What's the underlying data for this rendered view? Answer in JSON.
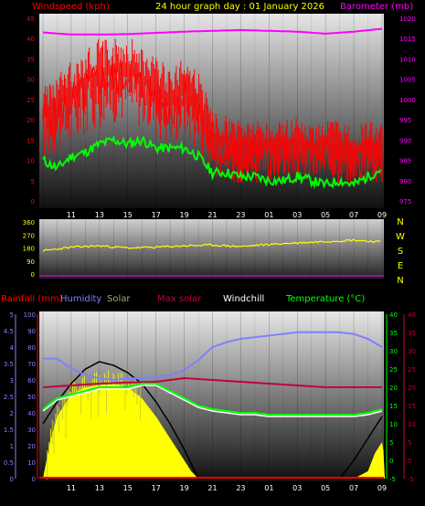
{
  "header": {
    "windspeed_label": "Windspeed (kph)",
    "title": "24 hour graph day : 01 January 2026",
    "barometer_label": "Barometer (mb)"
  },
  "legend2": {
    "rainfall": "Rainfall (mm)",
    "humidity": "Humidity",
    "solar": "Solar",
    "max_solar": "Max solar",
    "windchill": "Windchill",
    "temperature": "Temperature (°C)"
  },
  "colors": {
    "windspeed": "#ff0000",
    "windavg": "#00ff00",
    "barometer": "#ff00ff",
    "direction": "#ffff00",
    "humidity": "#8080ff",
    "solar": "#ffff00",
    "max_solar": "#c00040",
    "windchill": "#ffffff",
    "temperature": "#00ff00",
    "rain": "#ff0000",
    "rain_axis": "#8080ff",
    "title": "#ffff00"
  },
  "chart_data": [
    {
      "type": "line",
      "x_ticks": [
        "11",
        "13",
        "15",
        "17",
        "19",
        "21",
        "23",
        "01",
        "03",
        "05",
        "07",
        "09"
      ],
      "left_axis": {
        "label": "Windspeed (kph)",
        "ylim": [
          0,
          45
        ],
        "ticks": [
          "0",
          "5",
          "10",
          "15",
          "20",
          "25",
          "30",
          "35",
          "40",
          "45"
        ]
      },
      "right_axis": {
        "label": "Barometer (mb)",
        "ylim": [
          975,
          1020
        ],
        "ticks": [
          "975",
          "980",
          "985",
          "990",
          "995",
          "1000",
          "1005",
          "1010",
          "1015",
          "1020"
        ]
      },
      "series": [
        {
          "name": "Windspeed",
          "axis": "left",
          "kind": "gust_band",
          "x_hours": [
            9,
            10,
            11,
            12,
            13,
            14,
            15,
            16,
            17,
            18,
            19,
            20,
            21,
            22,
            23,
            24,
            25,
            26,
            27,
            28,
            29,
            30,
            31,
            32,
            33
          ],
          "values": [
            20,
            21,
            24,
            27,
            30,
            30,
            31,
            28,
            26,
            22,
            27,
            22,
            13,
            12,
            11,
            11,
            10,
            12,
            12,
            11,
            12,
            11,
            9,
            11,
            11
          ],
          "upper": [
            29,
            31,
            35,
            38,
            40,
            40,
            41,
            38,
            36,
            33,
            36,
            32,
            22,
            21,
            20,
            20,
            19,
            20,
            21,
            19,
            20,
            20,
            18,
            20,
            19
          ],
          "lower": [
            10,
            12,
            13,
            16,
            18,
            19,
            20,
            18,
            16,
            13,
            16,
            12,
            6,
            5,
            4,
            4,
            4,
            5,
            5,
            4,
            5,
            4,
            3,
            4,
            4
          ]
        },
        {
          "name": "Average wind",
          "axis": "left",
          "x_hours": [
            9,
            10,
            11,
            12,
            13,
            14,
            15,
            16,
            17,
            18,
            19,
            20,
            21,
            22,
            23,
            24,
            25,
            26,
            27,
            28,
            29,
            30,
            31,
            32,
            33
          ],
          "values": [
            10,
            8,
            11,
            12,
            14,
            15,
            14,
            15,
            13,
            13,
            13,
            11,
            7,
            7,
            6,
            6,
            5,
            5,
            6,
            5,
            4,
            5,
            4,
            6,
            8
          ]
        },
        {
          "name": "Barometer",
          "axis": "right",
          "x_hours": [
            9,
            11,
            13,
            15,
            17,
            19,
            21,
            23,
            25,
            27,
            29,
            31,
            33
          ],
          "values": [
            1016.5,
            1016,
            1016,
            1016.1,
            1016.4,
            1016.7,
            1016.9,
            1017.1,
            1016.9,
            1016.7,
            1016.2,
            1016.7,
            1017.4
          ]
        }
      ]
    },
    {
      "type": "line",
      "y_ticks": [
        "0",
        "90",
        "180",
        "270",
        "360"
      ],
      "ylim": [
        0,
        360
      ],
      "compass_labels": [
        "N",
        "W",
        "S",
        "E",
        "N"
      ],
      "series": [
        {
          "name": "Wind direction",
          "x_hours": [
            9,
            11,
            13,
            15,
            17,
            19,
            21,
            23,
            25,
            27,
            29,
            31,
            33
          ],
          "values": [
            160,
            185,
            195,
            180,
            185,
            195,
            200,
            190,
            205,
            215,
            225,
            235,
            220
          ]
        }
      ]
    },
    {
      "type": "area",
      "left_outer": {
        "label": "Rainfall (mm)",
        "ticks": [
          "0",
          "0.5",
          "1",
          "1.5",
          "2",
          "2.5",
          "3",
          "3.5",
          "4",
          "4.5",
          "5"
        ]
      },
      "left_inner": {
        "label": "Humidity",
        "ylim": [
          0,
          100
        ],
        "ticks": [
          "0",
          "10",
          "20",
          "30",
          "40",
          "50",
          "60",
          "70",
          "80",
          "90",
          "100"
        ]
      },
      "right_inner": {
        "label": "Temperature (°C)",
        "ylim": [
          -5,
          40
        ],
        "ticks": [
          "-5",
          "0",
          "5",
          "10",
          "15",
          "20",
          "25",
          "30",
          "35",
          "40"
        ]
      },
      "right_outer": {
        "ticks": [
          "-5",
          "0",
          "5",
          "10",
          "15",
          "20",
          "25",
          "30",
          "35",
          "40"
        ]
      },
      "series": [
        {
          "name": "Humidity",
          "axis": "humidity",
          "x_hours": [
            9,
            10,
            11,
            12,
            13,
            14,
            15,
            16,
            17,
            18,
            19,
            20,
            21,
            22,
            23,
            24,
            25,
            26,
            27,
            28,
            29,
            30,
            31,
            32,
            33
          ],
          "values": [
            73,
            73,
            67,
            63,
            61,
            60,
            61,
            61,
            62,
            63,
            66,
            72,
            80,
            83,
            85,
            86,
            87,
            88,
            89,
            89,
            89,
            89,
            88,
            85,
            80
          ]
        },
        {
          "name": "Temperature",
          "axis": "temperature",
          "x_hours": [
            9,
            10,
            11,
            12,
            13,
            14,
            15,
            16,
            17,
            18,
            19,
            20,
            21,
            22,
            23,
            24,
            25,
            26,
            27,
            28,
            29,
            30,
            31,
            32,
            33
          ],
          "values": [
            14,
            17,
            18,
            19,
            20,
            20,
            20,
            21,
            21,
            19,
            17,
            15,
            14,
            13.5,
            13,
            13,
            12.5,
            12.5,
            12.5,
            12.5,
            12.5,
            12.5,
            12.5,
            13,
            14
          ]
        },
        {
          "name": "Windchill",
          "axis": "temperature",
          "x_hours": [
            9,
            10,
            11,
            12,
            13,
            14,
            15,
            16,
            17,
            18,
            19,
            20,
            21,
            22,
            23,
            24,
            25,
            26,
            27,
            28,
            29,
            30,
            31,
            32,
            33
          ],
          "values": [
            13.5,
            16.5,
            17.5,
            18.5,
            19.5,
            19.5,
            19.5,
            20.5,
            20.5,
            18.5,
            16.5,
            14.5,
            13.5,
            13,
            12.5,
            12.5,
            12,
            12,
            12,
            12,
            12,
            12,
            12,
            12.5,
            13.5
          ]
        },
        {
          "name": "Max solar",
          "axis": "temperature",
          "x_hours": [
            9,
            11,
            13,
            15,
            17,
            19,
            21,
            23,
            25,
            27,
            29,
            31,
            33
          ],
          "values": [
            20,
            20.5,
            21,
            21.3,
            21.5,
            22.5,
            22,
            21.5,
            21,
            20.5,
            20,
            20,
            20
          ]
        },
        {
          "name": "Solar",
          "axis": "temperature",
          "x_hours": [
            9,
            9.5,
            10,
            11,
            12,
            13,
            14,
            15,
            16,
            17,
            18,
            19,
            19.5,
            20,
            31,
            32,
            32.5,
            33,
            33.2
          ],
          "values": [
            -5,
            5,
            12,
            18,
            20,
            20.5,
            21,
            20,
            17,
            12,
            6,
            0,
            -3,
            -5,
            -5,
            -3,
            2,
            5,
            0
          ]
        },
        {
          "name": "Max solar curve",
          "axis": "temperature",
          "x_hours": [
            9,
            10,
            11,
            12,
            13,
            14,
            15,
            16,
            17,
            18,
            19,
            20,
            30,
            31,
            32,
            33
          ],
          "values": [
            10,
            16,
            21,
            25,
            27,
            26,
            24,
            21,
            16,
            10,
            3,
            -5,
            -5,
            0,
            6,
            12
          ]
        },
        {
          "name": "Rainfall",
          "axis": "temperature",
          "x_hours": [
            9,
            33
          ],
          "values": [
            -5,
            -5
          ]
        }
      ],
      "x_ticks": [
        "11",
        "13",
        "15",
        "17",
        "19",
        "21",
        "23",
        "01",
        "03",
        "05",
        "07",
        "09"
      ]
    }
  ]
}
